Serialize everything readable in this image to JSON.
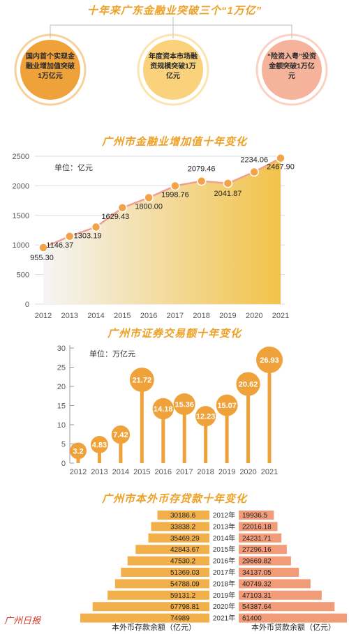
{
  "header": {
    "title": "十年来广东金融业突破三个“1万亿”"
  },
  "milestones": [
    {
      "text": "国内首个实现金融业增加值突破1万亿元",
      "color": "#f0a23a"
    },
    {
      "text": "年度资本市场融资规模突破1万亿元",
      "color": "#f9d27b"
    },
    {
      "text": "“险资入粤”投资金额突破1万亿元",
      "color": "#f6b39c"
    }
  ],
  "chart1": {
    "title": "广州市金融业增加值十年变化",
    "unit": "单位：亿元",
    "chart_data": {
      "type": "area",
      "x": [
        "2012",
        "2013",
        "2014",
        "2015",
        "2016",
        "2017",
        "2018",
        "2019",
        "2020",
        "2021"
      ],
      "values": [
        955.3,
        1146.37,
        1303.19,
        1629.43,
        1800.0,
        1998.76,
        2079.46,
        2041.87,
        2234.06,
        2467.9
      ],
      "labels": [
        "955.30",
        "1146.37",
        "1303.19",
        "1629.43",
        "1800.00",
        "1998.76",
        "2079.46",
        "2041.87",
        "2234.06",
        "2467.90"
      ],
      "yticks": [
        "0",
        "500",
        "1000",
        "1500",
        "2000",
        "2500"
      ],
      "ylim": [
        0,
        2500
      ]
    }
  },
  "chart2": {
    "title": "广州市证券交易额十年变化",
    "unit": "单位：万亿元",
    "chart_data": {
      "type": "bar",
      "categories": [
        "2012",
        "2013",
        "2014",
        "2015",
        "2016",
        "2017",
        "2018",
        "2019",
        "2020",
        "2021"
      ],
      "values": [
        3.2,
        4.83,
        7.42,
        21.72,
        14.18,
        15.36,
        12.23,
        15.07,
        20.62,
        26.93
      ],
      "labels": [
        "3.2",
        "4.83",
        "7.42",
        "21.72",
        "14.18",
        "15.36",
        "12.23",
        "15.07",
        "20.62",
        "26.93"
      ],
      "yticks": [
        "0",
        "5",
        "10",
        "15",
        "20",
        "25",
        "30"
      ],
      "ylim": [
        0,
        30
      ]
    }
  },
  "chart3": {
    "title": "广州市本外币存贷款十年变化",
    "chart_data": {
      "type": "bar",
      "years": [
        "2012年",
        "2013年",
        "2014年",
        "2015年",
        "2016年",
        "2017年",
        "2018年",
        "2019年",
        "2020年",
        "2021年"
      ],
      "series": [
        {
          "name": "本外币存款余额（亿元）",
          "values": [
            30186.6,
            33838.2,
            35469.29,
            42843.67,
            47530.2,
            51369.03,
            54788.09,
            59131.2,
            67798.81,
            74989
          ],
          "labels": [
            "30186.6",
            "33838.2",
            "35469.29",
            "42843.67",
            "47530.2",
            "51369.03",
            "54788.09",
            "59131.2",
            "67798.81",
            "74989"
          ]
        },
        {
          "name": "本外币贷款余额（亿元）",
          "values": [
            19936.5,
            22016.18,
            24231.71,
            27296.16,
            29669.82,
            34137.05,
            40749.32,
            47103.31,
            54387.64,
            61400
          ],
          "labels": [
            "19936.5",
            "22016.18",
            "24231.71",
            "27296.16",
            "29669.82",
            "34137.05",
            "40749.32",
            "47103.31",
            "54387.64",
            "61400"
          ]
        }
      ]
    }
  },
  "logo": "广州日报",
  "colors": {
    "accent": "#eea126",
    "deposit": "#f2b04a",
    "loan": "#ee8a60"
  }
}
